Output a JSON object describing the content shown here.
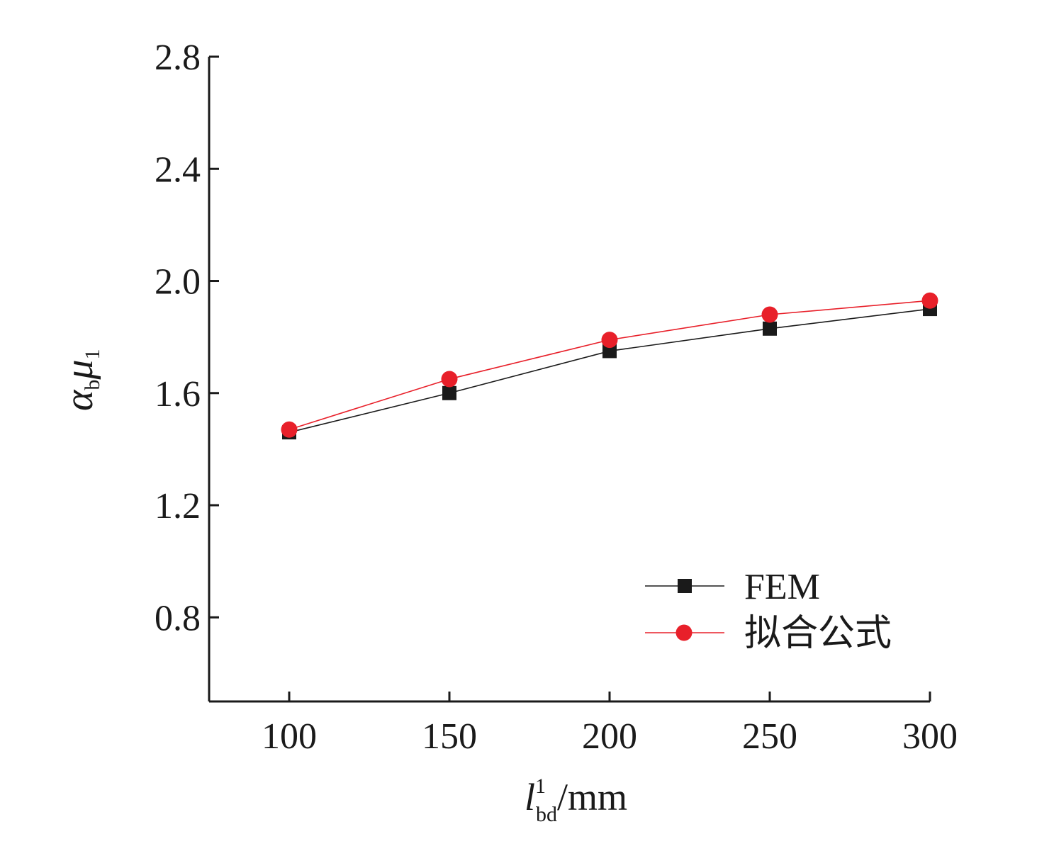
{
  "chart_data": {
    "type": "line",
    "x": [
      100,
      150,
      200,
      250,
      300
    ],
    "xlim": [
      75,
      300
    ],
    "ylim": [
      0.5,
      2.8
    ],
    "xticks": [
      "100",
      "150",
      "200",
      "250",
      "300"
    ],
    "yticks": [
      "0.8",
      "1.2",
      "1.6",
      "2.0",
      "2.4",
      "2.8"
    ],
    "xlabel": {
      "main": "l",
      "sup": "1",
      "sub": "bd",
      "unit": "/mm"
    },
    "ylabel": {
      "a": "α",
      "a_sub": "b",
      "b": "μ",
      "b_sub": "1"
    },
    "grid": false,
    "legend_position": "bottom-right",
    "series": [
      {
        "name": "FEM",
        "color": "#1a1a1a",
        "marker": "square",
        "values": [
          1.46,
          1.6,
          1.75,
          1.83,
          1.9
        ]
      },
      {
        "name": "拟合公式",
        "color": "#e8202a",
        "marker": "circle",
        "values": [
          1.47,
          1.65,
          1.79,
          1.88,
          1.93
        ]
      }
    ]
  }
}
